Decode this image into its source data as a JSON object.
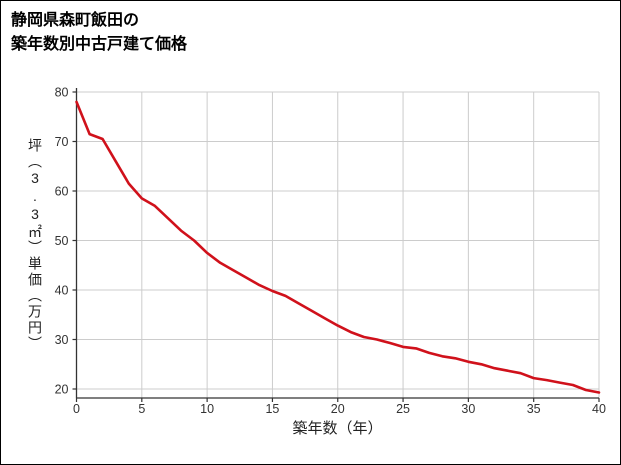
{
  "header": {
    "title_line1": "静岡県森町飯田の",
    "title_line2": "築年数別中古戸建て価格"
  },
  "chart_data": {
    "type": "line",
    "title": "静岡県森町飯田の築年数別中古戸建て価格",
    "xlabel": "築年数（年）",
    "ylabel": "坪（3.3㎡）単価（万円）",
    "x": [
      0,
      1,
      2,
      3,
      4,
      5,
      6,
      7,
      8,
      9,
      10,
      11,
      12,
      13,
      14,
      15,
      16,
      17,
      18,
      19,
      20,
      21,
      22,
      23,
      24,
      25,
      26,
      27,
      28,
      29,
      30,
      31,
      32,
      33,
      34,
      35,
      36,
      37,
      38,
      39,
      40
    ],
    "values": [
      78,
      71.5,
      70.5,
      66,
      61.5,
      58.5,
      57,
      54.5,
      52,
      50,
      47.5,
      45.5,
      44,
      42.5,
      41,
      39.8,
      38.8,
      37.3,
      35.8,
      34.3,
      32.8,
      31.5,
      30.5,
      30,
      29.3,
      28.5,
      28.2,
      27.3,
      26.6,
      26.2,
      25.5,
      25,
      24.2,
      23.7,
      23.2,
      22.2,
      21.8,
      21.3,
      20.8,
      19.8,
      19.3
    ],
    "xlim": [
      0,
      40
    ],
    "ylim": [
      18,
      80
    ],
    "xticks": [
      0,
      5,
      10,
      15,
      20,
      25,
      30,
      35,
      40
    ],
    "yticks": [
      20,
      30,
      40,
      50,
      60,
      70,
      80
    ],
    "grid": true,
    "legend": "none",
    "colors": {
      "line": "#d0111b",
      "grid": "#cccccc",
      "axis": "#333333",
      "tick_text": "#333333"
    }
  }
}
